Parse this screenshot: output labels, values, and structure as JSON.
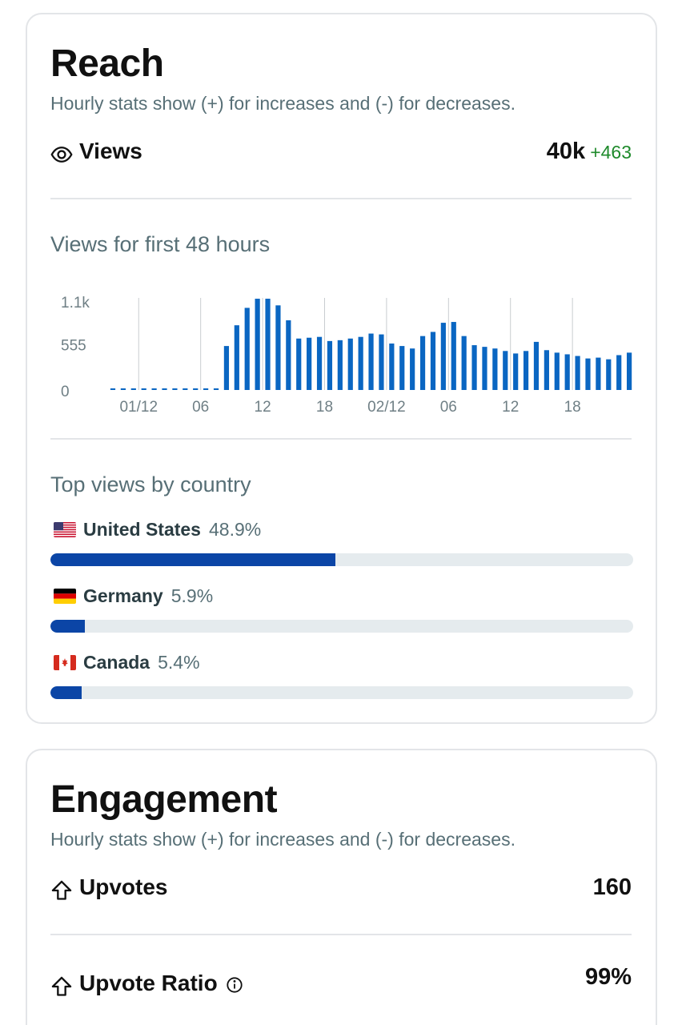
{
  "reach": {
    "title": "Reach",
    "subtitle": "Hourly stats show (+) for increases and (-) for decreases.",
    "views": {
      "icon": "eye-icon",
      "label": "Views",
      "value": "40k",
      "delta": "+463"
    },
    "chart_heading": "Views for first 48 hours",
    "countries_heading": "Top views by country",
    "countries": [
      {
        "flag": "us-flag-icon",
        "name": "United States",
        "pct_label": "48.9%",
        "pct": 48.9
      },
      {
        "flag": "de-flag-icon",
        "name": "Germany",
        "pct_label": "5.9%",
        "pct": 5.9
      },
      {
        "flag": "ca-flag-icon",
        "name": "Canada",
        "pct_label": "5.4%",
        "pct": 5.4
      }
    ]
  },
  "engagement": {
    "title": "Engagement",
    "subtitle": "Hourly stats show (+) for increases and (-) for decreases.",
    "upvotes": {
      "icon": "upvote-icon",
      "label": "Upvotes",
      "value": "160"
    },
    "upvote_ratio": {
      "icon": "upvote-icon",
      "label": "Upvote Ratio",
      "info_icon": "info-icon",
      "value": "99%"
    }
  },
  "colors": {
    "bar": "#0a66c2",
    "progress": "#0b45a6",
    "delta_positive": "#1e8a2b"
  },
  "chart_data": {
    "type": "bar",
    "title": "Views for first 48 hours",
    "y_tick_labels": [
      "1.1k",
      "555",
      "0"
    ],
    "y_ticks": [
      1110,
      555,
      0
    ],
    "ylim": [
      0,
      1110
    ],
    "x_tick_labels": [
      "01/12",
      "06",
      "12",
      "18",
      "02/12",
      "06",
      "12",
      "18"
    ],
    "x_tick_indices": [
      2,
      8,
      14,
      20,
      26,
      32,
      38,
      44
    ],
    "values": [
      0,
      0,
      0,
      0,
      0,
      0,
      0,
      0,
      0,
      0,
      0,
      530,
      780,
      990,
      1100,
      1100,
      1020,
      840,
      620,
      630,
      640,
      590,
      600,
      620,
      640,
      680,
      670,
      560,
      530,
      500,
      650,
      700,
      810,
      820,
      650,
      540,
      520,
      500,
      470,
      440,
      470,
      580,
      480,
      450,
      430,
      410,
      380,
      390,
      370,
      420,
      450,
      460
    ],
    "grid": "vertical lines at ticks",
    "legend": "none"
  }
}
